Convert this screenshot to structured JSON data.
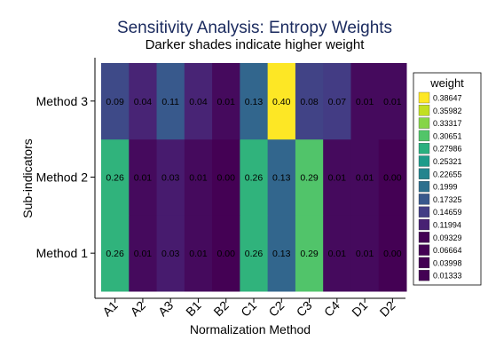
{
  "chart_data": {
    "type": "heatmap",
    "title": "Sensitivity Analysis: Entropy Weights",
    "subtitle": "Darker shades indicate higher weight",
    "xlabel": "Normalization Method",
    "ylabel": "Sub-indicators",
    "x_categories": [
      "A1",
      "A2",
      "A3",
      "B1",
      "B2",
      "C1",
      "C2",
      "C3",
      "C4",
      "D1",
      "D2"
    ],
    "y_categories": [
      "Method 1",
      "Method 2",
      "Method 3"
    ],
    "values": [
      [
        0.26,
        0.01,
        0.03,
        0.01,
        0.0,
        0.26,
        0.13,
        0.29,
        0.01,
        0.01,
        0.0
      ],
      [
        0.26,
        0.01,
        0.03,
        0.01,
        0.0,
        0.26,
        0.13,
        0.29,
        0.01,
        0.01,
        0.0
      ],
      [
        0.09,
        0.04,
        0.11,
        0.04,
        0.01,
        0.13,
        0.4,
        0.08,
        0.07,
        0.01,
        0.01
      ]
    ],
    "legend": {
      "title": "weight",
      "levels": [
        "0.38647",
        "0.35982",
        "0.33317",
        "0.30651",
        "0.27986",
        "0.25321",
        "0.22655",
        "0.1999",
        "0.17325",
        "0.14659",
        "0.11994",
        "0.09329",
        "0.06664",
        "0.03998",
        "0.01333"
      ],
      "colors": [
        "#fde725",
        "#c2df23",
        "#86d549",
        "#52c569",
        "#2ab07f",
        "#1e9b8a",
        "#25858e",
        "#2d708e",
        "#38588c",
        "#433e85",
        "#482173",
        "#440154",
        "#440154",
        "#440154",
        "#440154"
      ],
      "placement": "right"
    },
    "colorscale": [
      "#440154",
      "#482173",
      "#433e85",
      "#38588c",
      "#2d708e",
      "#25858e",
      "#1e9b8a",
      "#2ab07f",
      "#52c569",
      "#86d549",
      "#c2df23",
      "#fde725"
    ],
    "grid": false
  }
}
